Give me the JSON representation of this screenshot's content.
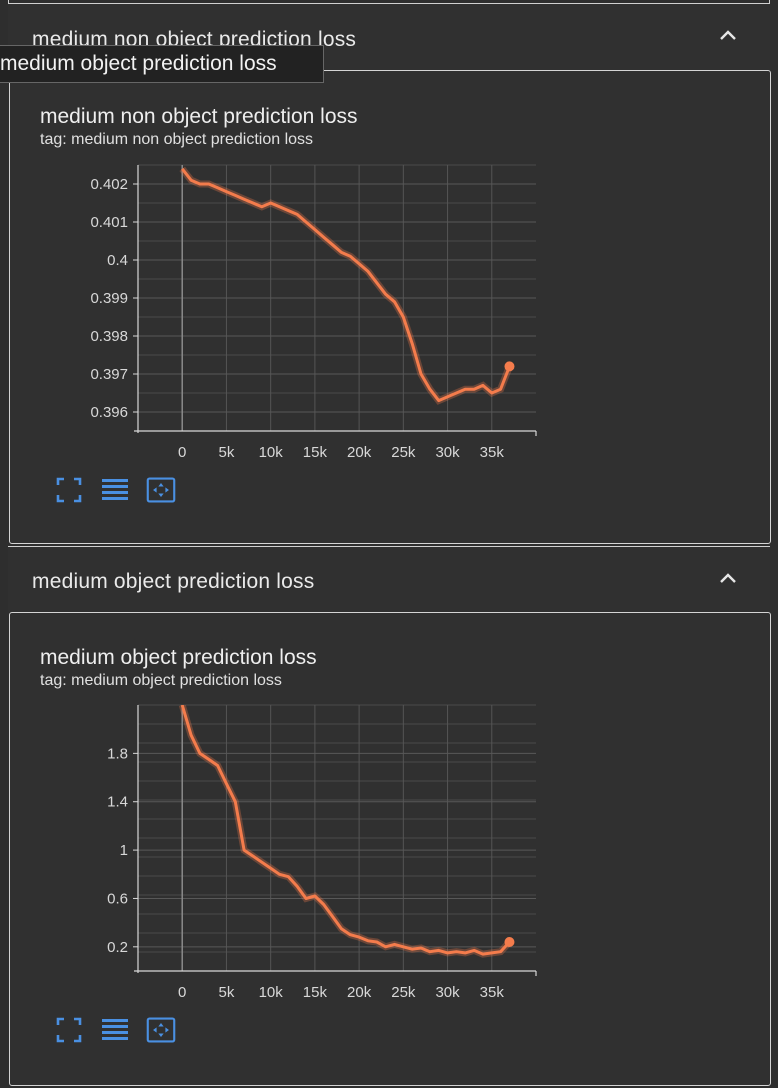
{
  "tooltip": "medium object prediction loss",
  "sections": [
    {
      "header": "medium non object prediction loss",
      "card_title": "medium non object prediction loss",
      "card_tag": "tag: medium non object prediction loss",
      "chart_data": {
        "type": "line",
        "title": "medium non object prediction loss",
        "x_ticks": [
          "0",
          "5k",
          "10k",
          "15k",
          "20k",
          "25k",
          "30k",
          "35k"
        ],
        "y_ticks": [
          "0.402",
          "0.401",
          "0.4",
          "0.399",
          "0.398",
          "0.397",
          "0.396"
        ],
        "xlim": [
          -5000,
          40000
        ],
        "ylim": [
          0.3955,
          0.4025
        ],
        "series": [
          {
            "color": "#f47c4c",
            "x": [
              0,
              1000,
              2000,
              3000,
              4000,
              5000,
              6000,
              7000,
              8000,
              9000,
              10000,
              11000,
              12000,
              13000,
              14000,
              15000,
              16000,
              17000,
              18000,
              19000,
              20000,
              21000,
              22000,
              23000,
              24000,
              25000,
              26000,
              27000,
              28000,
              29000,
              30000,
              31000,
              32000,
              33000,
              34000,
              35000,
              36000,
              37000
            ],
            "y": [
              0.4024,
              0.4021,
              0.402,
              0.402,
              0.4019,
              0.4018,
              0.4017,
              0.4016,
              0.4015,
              0.4014,
              0.4015,
              0.4014,
              0.4013,
              0.4012,
              0.401,
              0.4008,
              0.4006,
              0.4004,
              0.4002,
              0.4001,
              0.3999,
              0.3997,
              0.3994,
              0.3991,
              0.3989,
              0.3985,
              0.3978,
              0.397,
              0.3966,
              0.3963,
              0.3964,
              0.3965,
              0.3966,
              0.3966,
              0.3967,
              0.3965,
              0.3966,
              0.3972
            ]
          }
        ]
      }
    },
    {
      "header": "medium object prediction loss",
      "card_title": "medium object prediction loss",
      "card_tag": "tag: medium object prediction loss",
      "chart_data": {
        "type": "line",
        "title": "medium object prediction loss",
        "x_ticks": [
          "0",
          "5k",
          "10k",
          "15k",
          "20k",
          "25k",
          "30k",
          "35k"
        ],
        "y_ticks": [
          "1.8",
          "1.4",
          "1",
          "0.6",
          "0.2"
        ],
        "xlim": [
          -5000,
          40000
        ],
        "ylim": [
          0.0,
          2.2
        ],
        "series": [
          {
            "color": "#f47c4c",
            "x": [
              0,
              1000,
              2000,
              3000,
              4000,
              5000,
              6000,
              7000,
              8000,
              9000,
              10000,
              11000,
              12000,
              13000,
              14000,
              15000,
              16000,
              17000,
              18000,
              19000,
              20000,
              21000,
              22000,
              23000,
              24000,
              25000,
              26000,
              27000,
              28000,
              29000,
              30000,
              31000,
              32000,
              33000,
              34000,
              35000,
              36000,
              37000
            ],
            "y": [
              2.2,
              1.95,
              1.8,
              1.75,
              1.7,
              1.55,
              1.4,
              1.0,
              0.95,
              0.9,
              0.85,
              0.8,
              0.78,
              0.7,
              0.6,
              0.62,
              0.55,
              0.45,
              0.35,
              0.3,
              0.28,
              0.25,
              0.24,
              0.2,
              0.22,
              0.2,
              0.18,
              0.19,
              0.16,
              0.17,
              0.15,
              0.16,
              0.15,
              0.17,
              0.14,
              0.15,
              0.16,
              0.24
            ]
          }
        ]
      }
    }
  ]
}
